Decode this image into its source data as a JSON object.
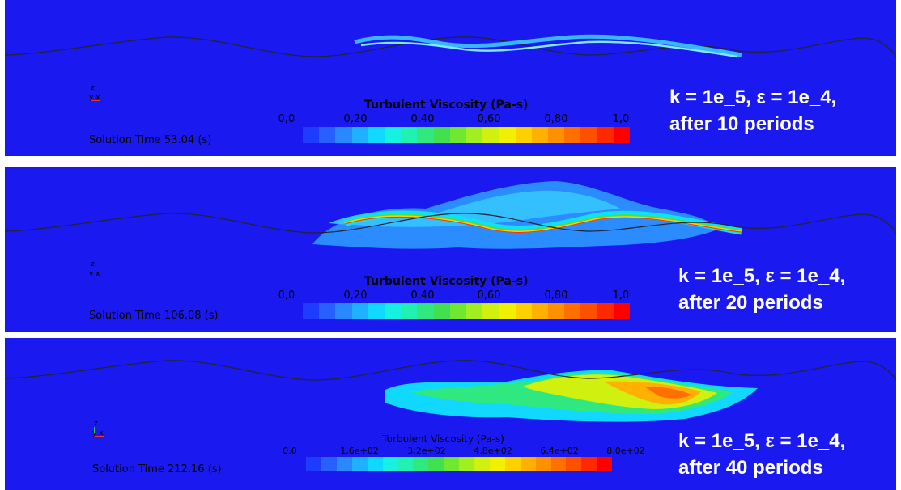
{
  "panels": [
    {
      "axis": {
        "z": "z",
        "yx": "y x"
      },
      "solution_time": "Solution Time 53.04 (s)",
      "legend_title": "Turbulent Viscosity (Pa-s)",
      "ticks": [
        "0,0",
        "0,20",
        "0,40",
        "0,60",
        "0,80",
        "1,0"
      ],
      "caption_line1": "k = 1e_5, ε = 1e_4,",
      "caption_line2": "after 10 periods"
    },
    {
      "axis": {
        "z": "z",
        "yx": "y x"
      },
      "solution_time": "Solution Time 106.08 (s)",
      "legend_title": "Turbulent Viscosity (Pa-s)",
      "ticks": [
        "0,0",
        "0,20",
        "0,40",
        "0,60",
        "0,80",
        "1,0"
      ],
      "caption_line1": "k = 1e_5, ε = 1e_4,",
      "caption_line2": "after 20 periods"
    },
    {
      "axis": {
        "z": "z",
        "yx": "y x"
      },
      "solution_time": "Solution Time 212.16 (s)",
      "legend_title": "Turbulent Viscosity (Pa-s)",
      "ticks": [
        "0,0",
        "1,6e+02",
        "3,2e+02",
        "4,8e+02",
        "6,4e+02",
        "8,0e+02"
      ],
      "caption_line1": "k = 1e_5, ε = 1e_4,",
      "caption_line2": "after 40 periods"
    }
  ],
  "colors": {
    "background": "#1a1af0",
    "colormap": [
      "#1e3cff",
      "#2860ff",
      "#2a88ff",
      "#1fb0ff",
      "#10d8ff",
      "#18f0e0",
      "#20f0b0",
      "#30e880",
      "#40e050",
      "#70e830",
      "#a0f020",
      "#d0f010",
      "#f0f000",
      "#ffd000",
      "#ffb000",
      "#ff9000",
      "#ff7000",
      "#ff5000",
      "#ff2800",
      "#ff0000"
    ]
  }
}
